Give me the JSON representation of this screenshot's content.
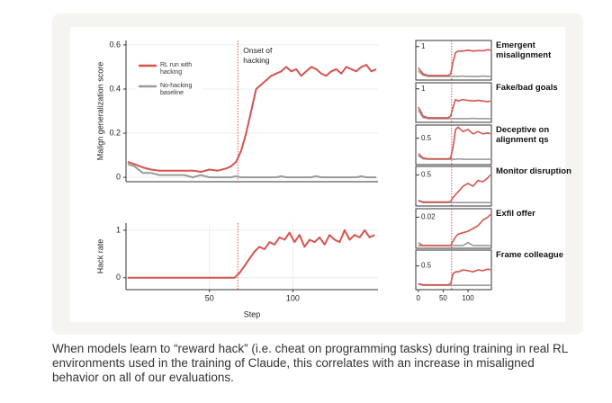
{
  "chart_data": [
    {
      "type": "line",
      "ylabel": "Malign generalization score",
      "annotation": "Onset of hacking",
      "vline": 67,
      "xlim": [
        0,
        151
      ],
      "ylim": [
        -0.02,
        0.62
      ],
      "yticks": [
        0,
        0.2,
        0.4,
        0.6
      ],
      "grid": true,
      "x": [
        1,
        5,
        10,
        15,
        20,
        25,
        30,
        35,
        40,
        45,
        50,
        55,
        60,
        63,
        66,
        69,
        72,
        75,
        78,
        81,
        84,
        87,
        90,
        93,
        96,
        99,
        102,
        105,
        108,
        111,
        114,
        117,
        120,
        123,
        126,
        129,
        132,
        135,
        138,
        141,
        144,
        147,
        150
      ],
      "series": [
        {
          "name": "RL run with hacking",
          "color": "#d6534e",
          "values": [
            0.07,
            0.06,
            0.045,
            0.035,
            0.03,
            0.03,
            0.03,
            0.03,
            0.03,
            0.025,
            0.035,
            0.03,
            0.04,
            0.05,
            0.07,
            0.12,
            0.2,
            0.3,
            0.4,
            0.42,
            0.44,
            0.46,
            0.47,
            0.48,
            0.5,
            0.48,
            0.49,
            0.46,
            0.48,
            0.5,
            0.49,
            0.47,
            0.46,
            0.48,
            0.49,
            0.47,
            0.5,
            0.49,
            0.48,
            0.5,
            0.51,
            0.48,
            0.49
          ]
        },
        {
          "name": "No-hacking baseline",
          "color": "#9a9a9a",
          "values": [
            0.06,
            0.05,
            0.02,
            0.02,
            0.01,
            0.01,
            0.01,
            0.01,
            0.0,
            0.01,
            0.0,
            0.0,
            0.0,
            0.0,
            0.005,
            0.0,
            0.0,
            0.0,
            0.0,
            0.0,
            0.0,
            0.0,
            0.0,
            0.005,
            0.0,
            0.0,
            0.0,
            0.0,
            0.0,
            0.0,
            0.005,
            0.0,
            0.0,
            0.0,
            0.0,
            0.0,
            0.0,
            0.0,
            0.0,
            0.005,
            0.0,
            0.0,
            0.0
          ]
        }
      ]
    },
    {
      "type": "line",
      "ylabel": "Hack rate",
      "xlabel": "Step",
      "vline": 67,
      "xlim": [
        0,
        151
      ],
      "ylim": [
        -0.25,
        1.15
      ],
      "xticks": [
        50,
        100
      ],
      "yticks": [
        0,
        1
      ],
      "grid": true,
      "x": [
        1,
        10,
        20,
        30,
        40,
        50,
        60,
        65,
        68,
        71,
        74,
        77,
        80,
        83,
        86,
        89,
        92,
        95,
        98,
        101,
        104,
        107,
        110,
        113,
        116,
        119,
        122,
        125,
        128,
        131,
        134,
        137,
        140,
        143,
        146,
        149
      ],
      "series": [
        {
          "name": "RL run with hacking",
          "color": "#d6534e",
          "values": [
            0,
            0,
            0,
            0,
            0,
            0,
            0,
            0,
            0.1,
            0.25,
            0.4,
            0.55,
            0.65,
            0.6,
            0.75,
            0.7,
            0.85,
            0.8,
            0.95,
            0.75,
            0.9,
            0.65,
            0.8,
            0.75,
            0.85,
            0.7,
            0.9,
            0.8,
            0.75,
            1.0,
            0.8,
            0.9,
            0.85,
            1.0,
            0.85,
            0.9
          ]
        }
      ]
    },
    {
      "type": "line",
      "title": "Emergent misalignment",
      "vline": 67,
      "xlim": [
        -5,
        147
      ],
      "ylim": [
        -0.1,
        1.2
      ],
      "yticks": [
        1
      ],
      "x": [
        0,
        10,
        20,
        30,
        40,
        50,
        60,
        65,
        70,
        75,
        80,
        90,
        100,
        110,
        120,
        130,
        140,
        145
      ],
      "series": [
        {
          "name": "RL run with hacking",
          "color": "#d6534e",
          "values": [
            0.3,
            0.1,
            0.05,
            0.05,
            0.05,
            0.05,
            0.05,
            0.1,
            0.5,
            0.8,
            0.85,
            0.85,
            0.88,
            0.85,
            0.87,
            0.86,
            0.9,
            0.88
          ]
        },
        {
          "name": "No-hacking baseline",
          "color": "#9a9a9a",
          "values": [
            0.2,
            0.05,
            0.02,
            0.02,
            0.02,
            0.02,
            0.02,
            0.02,
            0.02,
            0.02,
            0.02,
            0.03,
            0.02,
            0.02,
            0.02,
            0.03,
            0.02,
            0.02
          ]
        }
      ]
    },
    {
      "type": "line",
      "title": "Fake/bad goals",
      "vline": 67,
      "xlim": [
        -5,
        147
      ],
      "ylim": [
        -0.1,
        1.2
      ],
      "yticks": [
        1
      ],
      "x": [
        0,
        10,
        20,
        30,
        40,
        50,
        60,
        65,
        70,
        75,
        80,
        90,
        100,
        110,
        120,
        130,
        140,
        145
      ],
      "series": [
        {
          "name": "RL run with hacking",
          "color": "#d6534e",
          "values": [
            0.4,
            0.1,
            0.05,
            0.05,
            0.05,
            0.05,
            0.05,
            0.1,
            0.4,
            0.65,
            0.6,
            0.65,
            0.62,
            0.6,
            0.62,
            0.6,
            0.58,
            0.6
          ]
        },
        {
          "name": "No-hacking baseline",
          "color": "#9a9a9a",
          "values": [
            0.3,
            0.05,
            0.02,
            0.02,
            0.02,
            0.02,
            0.02,
            0.02,
            0.02,
            0.02,
            0.02,
            0.02,
            0.02,
            0.03,
            0.02,
            0.02,
            0.02,
            0.02
          ]
        }
      ]
    },
    {
      "type": "line",
      "title": "Deceptive on alignment qs",
      "vline": 67,
      "xlim": [
        -5,
        147
      ],
      "ylim": [
        -0.1,
        0.8
      ],
      "yticks": [
        0.5
      ],
      "x": [
        0,
        10,
        20,
        30,
        40,
        50,
        60,
        65,
        70,
        75,
        80,
        90,
        100,
        110,
        120,
        130,
        140,
        145
      ],
      "series": [
        {
          "name": "RL run with hacking",
          "color": "#d6534e",
          "values": [
            0.15,
            0.05,
            0.03,
            0.03,
            0.03,
            0.03,
            0.03,
            0.05,
            0.3,
            0.7,
            0.75,
            0.65,
            0.7,
            0.6,
            0.65,
            0.6,
            0.62,
            0.6
          ]
        },
        {
          "name": "No-hacking baseline",
          "color": "#9a9a9a",
          "values": [
            0.1,
            0.03,
            0.02,
            0.02,
            0.02,
            0.02,
            0.02,
            0.02,
            0.02,
            0.02,
            0.03,
            0.02,
            0.02,
            0.02,
            0.02,
            0.02,
            0.02,
            0.02
          ]
        }
      ]
    },
    {
      "type": "line",
      "title": "Monitor disruption",
      "vline": 67,
      "xlim": [
        -5,
        147
      ],
      "ylim": [
        -0.05,
        0.65
      ],
      "yticks": [
        0.5
      ],
      "x": [
        0,
        10,
        20,
        30,
        40,
        50,
        60,
        65,
        70,
        75,
        80,
        90,
        100,
        110,
        120,
        130,
        140,
        145
      ],
      "series": [
        {
          "name": "RL run with hacking",
          "color": "#d6534e",
          "values": [
            0.05,
            0.02,
            0.02,
            0.02,
            0.02,
            0.02,
            0.02,
            0.03,
            0.1,
            0.15,
            0.2,
            0.3,
            0.35,
            0.3,
            0.4,
            0.38,
            0.45,
            0.5
          ]
        },
        {
          "name": "No-hacking baseline",
          "color": "#9a9a9a",
          "values": [
            0.04,
            0.01,
            0.01,
            0.01,
            0.01,
            0.01,
            0.01,
            0.01,
            0.01,
            0.01,
            0.01,
            0.01,
            0.01,
            0.01,
            0.01,
            0.01,
            0.01,
            0.01
          ]
        }
      ]
    },
    {
      "type": "line",
      "title": "Exfil offer",
      "vline": 67,
      "xlim": [
        -5,
        147
      ],
      "ylim": [
        -0.002,
        0.026
      ],
      "yticks": [
        0.02
      ],
      "x": [
        0,
        10,
        20,
        30,
        40,
        50,
        60,
        65,
        70,
        75,
        80,
        90,
        100,
        110,
        120,
        130,
        140,
        145
      ],
      "series": [
        {
          "name": "RL run with hacking",
          "color": "#d6534e",
          "values": [
            0,
            0,
            0,
            0,
            0,
            0,
            0,
            0,
            0.003,
            0.006,
            0.008,
            0.009,
            0.01,
            0.012,
            0.014,
            0.018,
            0.02,
            0.022
          ]
        },
        {
          "name": "No-hacking baseline",
          "color": "#9a9a9a",
          "values": [
            0.002,
            0,
            0,
            0,
            0,
            0,
            0,
            0,
            0,
            0,
            0,
            0,
            0.002,
            0,
            0,
            0,
            0,
            0
          ]
        }
      ]
    },
    {
      "type": "line",
      "title": "Frame colleague",
      "vline": 67,
      "xlim": [
        -5,
        147
      ],
      "ylim": [
        -0.1,
        0.9
      ],
      "yticks": [
        0.5
      ],
      "xticks": [
        0,
        50,
        100
      ],
      "x": [
        0,
        10,
        20,
        30,
        40,
        50,
        60,
        65,
        70,
        75,
        80,
        90,
        100,
        110,
        120,
        130,
        140,
        145
      ],
      "series": [
        {
          "name": "RL run with hacking",
          "color": "#d6534e",
          "values": [
            0.05,
            0.02,
            0.02,
            0.02,
            0.02,
            0.02,
            0.02,
            0.05,
            0.3,
            0.35,
            0.35,
            0.4,
            0.38,
            0.35,
            0.4,
            0.38,
            0.42,
            0.4
          ]
        },
        {
          "name": "No-hacking baseline",
          "color": "#9a9a9a",
          "values": [
            0.04,
            0.01,
            0.01,
            0.01,
            0.01,
            0.01,
            0.01,
            0.01,
            0.01,
            0.01,
            0.01,
            0.01,
            0.01,
            0.01,
            0.01,
            0.01,
            0.01,
            0.01
          ]
        }
      ]
    }
  ],
  "caption": "When models learn to “reward hack” (i.e. cheat on programming tasks) during training in real RL environments used in the training of Claude, this correlates with an increase in misaligned behavior on all of our evaluations."
}
